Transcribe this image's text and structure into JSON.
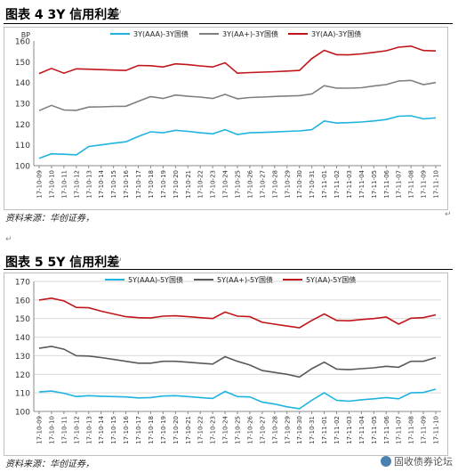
{
  "figures": [
    {
      "title": "图表 4   3Y 信用利差",
      "source": "资料来源：华创证券，",
      "chart_data": {
        "type": "line",
        "ylabel": "BP",
        "ylim": [
          100,
          160
        ],
        "yticks": [
          100,
          110,
          120,
          130,
          140,
          150,
          160
        ],
        "categories": [
          "17-10-09",
          "17-10-10",
          "17-10-11",
          "17-10-12",
          "17-10-13",
          "17-10-14",
          "17-10-15",
          "17-10-16",
          "17-10-17",
          "17-10-18",
          "17-10-19",
          "17-10-20",
          "17-10-21",
          "17-10-22",
          "17-10-23",
          "17-10-24",
          "17-10-25",
          "17-10-26",
          "17-10-27",
          "17-10-28",
          "17-10-29",
          "17-10-30",
          "17-10-31",
          "17-11-01",
          "17-11-02",
          "17-11-03",
          "17-11-04",
          "17-11-05",
          "17-11-06",
          "17-11-07",
          "17-11-08",
          "17-11-09",
          "17-11-10"
        ],
        "series": [
          {
            "name": "3Y(AAA)-3Y国债",
            "color": "#1fb3e0",
            "values": [
              103.5,
              105.7,
              105.5,
              105.2,
              109.2,
              110.0,
              110.8,
              111.5,
              114.0,
              116.3,
              115.8,
              117.0,
              116.5,
              115.8,
              115.3,
              117.3,
              115.0,
              115.8,
              116.0,
              116.2,
              116.5,
              116.7,
              117.3,
              121.5,
              120.5,
              120.7,
              121.0,
              121.5,
              122.2,
              123.8,
              124.0,
              122.5,
              123.0
            ]
          },
          {
            "name": "3Y(AA+)-3Y国债",
            "color": "#7f7f7f",
            "values": [
              126.5,
              129.0,
              126.8,
              126.6,
              128.2,
              128.3,
              128.5,
              128.6,
              131.0,
              133.2,
              132.3,
              134.0,
              133.4,
              133.0,
              132.3,
              134.3,
              132.2,
              132.8,
              133.0,
              133.3,
              133.5,
              133.7,
              134.5,
              138.5,
              137.3,
              137.3,
              137.5,
              138.3,
              139.0,
              140.7,
              141.0,
              139.0,
              140.0
            ]
          },
          {
            "name": "3Y(AA)-3Y国债",
            "color": "#c0151a",
            "values": [
              144.3,
              146.8,
              144.5,
              146.6,
              146.4,
              146.2,
              146.0,
              145.8,
              148.2,
              148.1,
              147.5,
              149.0,
              148.6,
              148.0,
              147.5,
              149.5,
              144.5,
              144.8,
              145.0,
              145.2,
              145.5,
              145.8,
              151.5,
              155.5,
              153.4,
              153.3,
              153.8,
              154.5,
              155.3,
              157.0,
              157.5,
              155.4,
              155.2
            ]
          }
        ]
      }
    },
    {
      "title": "图表 5   5Y 信用利差",
      "source": "资料来源：华创证券，",
      "chart_data": {
        "type": "line",
        "ylabel": "",
        "ylim": [
          100,
          170
        ],
        "yticks": [
          100,
          110,
          120,
          130,
          140,
          150,
          160,
          170
        ],
        "categories": [
          "17-10-09",
          "17-10-10",
          "17-10-11",
          "17-10-12",
          "17-10-13",
          "17-10-14",
          "17-10-15",
          "17-10-16",
          "17-10-17",
          "17-10-18",
          "17-10-19",
          "17-10-20",
          "17-10-21",
          "17-10-22",
          "17-10-23",
          "17-10-24",
          "17-10-25",
          "17-10-26",
          "17-10-27",
          "17-10-28",
          "17-10-29",
          "17-10-30",
          "17-10-31",
          "17-11-01",
          "17-11-02",
          "17-11-03",
          "17-11-04",
          "17-11-05",
          "17-11-06",
          "17-11-07",
          "17-11-08",
          "17-11-09",
          "17-11-10"
        ],
        "series": [
          {
            "name": "5Y(AAA)-5Y国债",
            "color": "#1fb3e0",
            "values": [
              110.5,
              111.0,
              109.8,
              108.0,
              108.5,
              108.2,
              108.0,
              107.8,
              107.3,
              107.5,
              108.3,
              108.5,
              108.0,
              107.5,
              107.0,
              110.8,
              108.0,
              107.8,
              105.0,
              104.0,
              102.5,
              101.5,
              106.0,
              110.0,
              106.0,
              105.5,
              106.3,
              106.8,
              107.5,
              106.8,
              110.0,
              110.2,
              112.0
            ]
          },
          {
            "name": "5Y(AA+)-5Y国债",
            "color": "#595959",
            "values": [
              134.0,
              135.0,
              133.5,
              130.0,
              129.8,
              129.0,
              128.0,
              127.0,
              126.0,
              126.0,
              127.0,
              127.0,
              126.5,
              126.0,
              125.5,
              129.5,
              127.0,
              125.0,
              122.0,
              121.0,
              120.0,
              118.5,
              123.0,
              126.5,
              122.8,
              122.5,
              123.0,
              123.5,
              124.3,
              123.8,
              127.0,
              127.0,
              129.0
            ]
          },
          {
            "name": "5Y(AA)-5Y国债",
            "color": "#c0151a",
            "values": [
              160.0,
              161.0,
              159.5,
              156.0,
              155.8,
              154.0,
              152.5,
              151.0,
              150.5,
              150.3,
              151.3,
              151.5,
              151.0,
              150.5,
              150.0,
              153.5,
              151.3,
              151.0,
              148.0,
              147.0,
              146.0,
              145.0,
              149.0,
              152.5,
              149.0,
              148.8,
              149.5,
              150.0,
              150.8,
              147.0,
              150.2,
              150.5,
              152.0
            ]
          }
        ]
      }
    }
  ],
  "watermark": "固收债券论坛",
  "para_mark": "↵"
}
